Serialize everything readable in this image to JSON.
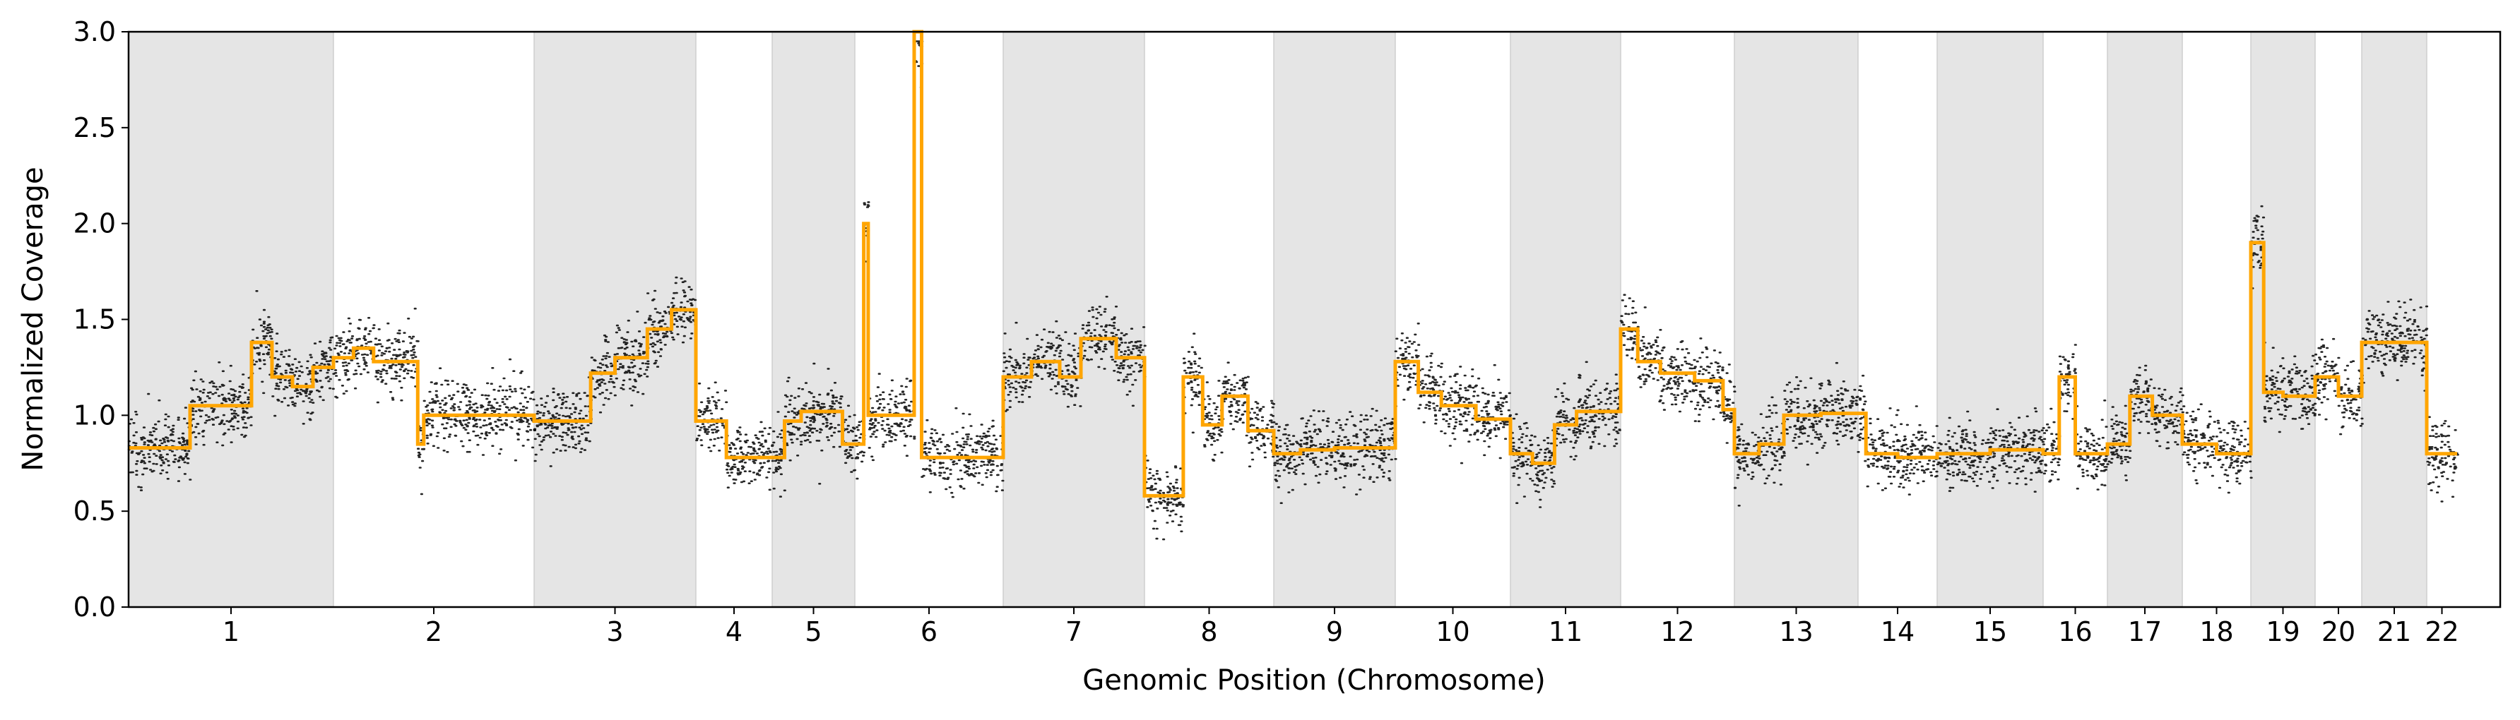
{
  "chart_data": {
    "type": "scatter",
    "xlabel": "Genomic Position (Chromosome)",
    "ylabel": "Normalized Coverage",
    "ylim": [
      0.0,
      3.0
    ],
    "yticks": [
      "0.0",
      "0.5",
      "1.0",
      "1.5",
      "2.0",
      "2.5",
      "3.0"
    ],
    "grid": false,
    "legend": "none",
    "colors": {
      "points": "#000000",
      "segments": "#FFA500",
      "shade": "#e5e5e5"
    },
    "chromosomes": [
      {
        "label": "1",
        "shaded": true,
        "segments": [
          [
            0.0,
            0.3,
            0.83
          ],
          [
            0.3,
            0.6,
            1.05
          ],
          [
            0.6,
            0.7,
            1.38
          ],
          [
            0.7,
            0.8,
            1.2
          ],
          [
            0.8,
            0.9,
            1.15
          ],
          [
            0.9,
            1.0,
            1.25
          ]
        ]
      },
      {
        "label": "2",
        "shaded": false,
        "segments": [
          [
            0.0,
            0.1,
            1.3
          ],
          [
            0.1,
            0.2,
            1.35
          ],
          [
            0.2,
            0.42,
            1.28
          ],
          [
            0.42,
            0.45,
            0.85
          ],
          [
            0.45,
            1.0,
            1.0
          ]
        ]
      },
      {
        "label": "3",
        "shaded": true,
        "segments": [
          [
            0.0,
            0.35,
            0.97
          ],
          [
            0.35,
            0.5,
            1.22
          ],
          [
            0.5,
            0.7,
            1.3
          ],
          [
            0.7,
            0.85,
            1.45
          ],
          [
            0.85,
            1.0,
            1.55
          ]
        ]
      },
      {
        "label": "4",
        "shaded": false,
        "segments": [
          [
            0.0,
            0.4,
            0.97
          ],
          [
            0.4,
            1.0,
            0.78
          ]
        ]
      },
      {
        "label": "5",
        "shaded": true,
        "segments": [
          [
            0.0,
            0.15,
            0.78
          ],
          [
            0.15,
            0.35,
            0.97
          ],
          [
            0.35,
            0.85,
            1.02
          ],
          [
            0.85,
            1.0,
            0.85
          ]
        ]
      },
      {
        "label": "6",
        "shaded": false,
        "segments": [
          [
            0.0,
            0.06,
            0.85
          ],
          [
            0.06,
            0.09,
            2.0
          ],
          [
            0.09,
            0.4,
            1.0
          ],
          [
            0.4,
            0.45,
            3.0
          ],
          [
            0.45,
            1.0,
            0.78
          ]
        ]
      },
      {
        "label": "7",
        "shaded": true,
        "segments": [
          [
            0.0,
            0.2,
            1.2
          ],
          [
            0.2,
            0.4,
            1.28
          ],
          [
            0.4,
            0.55,
            1.2
          ],
          [
            0.55,
            0.8,
            1.4
          ],
          [
            0.8,
            1.0,
            1.3
          ]
        ]
      },
      {
        "label": "8",
        "shaded": false,
        "segments": [
          [
            0.0,
            0.3,
            0.58
          ],
          [
            0.3,
            0.45,
            1.2
          ],
          [
            0.45,
            0.6,
            0.95
          ],
          [
            0.6,
            0.8,
            1.1
          ],
          [
            0.8,
            1.0,
            0.92
          ]
        ]
      },
      {
        "label": "9",
        "shaded": true,
        "segments": [
          [
            0.0,
            0.22,
            0.8
          ],
          [
            0.22,
            0.5,
            0.82
          ],
          [
            0.5,
            1.0,
            0.83
          ]
        ]
      },
      {
        "label": "10",
        "shaded": false,
        "segments": [
          [
            0.0,
            0.2,
            1.28
          ],
          [
            0.2,
            0.4,
            1.12
          ],
          [
            0.4,
            0.7,
            1.05
          ],
          [
            0.7,
            1.0,
            0.98
          ]
        ]
      },
      {
        "label": "11",
        "shaded": true,
        "segments": [
          [
            0.0,
            0.2,
            0.8
          ],
          [
            0.2,
            0.4,
            0.75
          ],
          [
            0.4,
            0.6,
            0.95
          ],
          [
            0.6,
            1.0,
            1.02
          ]
        ]
      },
      {
        "label": "12",
        "shaded": false,
        "segments": [
          [
            0.0,
            0.15,
            1.45
          ],
          [
            0.15,
            0.35,
            1.28
          ],
          [
            0.35,
            0.65,
            1.22
          ],
          [
            0.65,
            0.9,
            1.18
          ],
          [
            0.9,
            1.0,
            1.03
          ]
        ]
      },
      {
        "label": "13",
        "shaded": true,
        "segments": [
          [
            0.0,
            0.2,
            0.8
          ],
          [
            0.2,
            0.4,
            0.85
          ],
          [
            0.4,
            0.7,
            1.0
          ],
          [
            0.7,
            1.0,
            1.01
          ]
        ]
      },
      {
        "label": "14",
        "shaded": false,
        "segments": [
          [
            0.0,
            0.1,
            1.01
          ],
          [
            0.1,
            0.5,
            0.8
          ],
          [
            0.5,
            1.0,
            0.78
          ]
        ]
      },
      {
        "label": "15",
        "shaded": true,
        "segments": [
          [
            0.0,
            0.5,
            0.8
          ],
          [
            0.5,
            1.0,
            0.82
          ]
        ]
      },
      {
        "label": "16",
        "shaded": false,
        "segments": [
          [
            0.0,
            0.25,
            0.8
          ],
          [
            0.25,
            0.5,
            1.2
          ],
          [
            0.5,
            1.0,
            0.8
          ]
        ]
      },
      {
        "label": "17",
        "shaded": true,
        "segments": [
          [
            0.0,
            0.3,
            0.85
          ],
          [
            0.3,
            0.6,
            1.1
          ],
          [
            0.6,
            1.0,
            1.0
          ]
        ]
      },
      {
        "label": "18",
        "shaded": false,
        "segments": [
          [
            0.0,
            0.5,
            0.85
          ],
          [
            0.5,
            1.0,
            0.8
          ]
        ]
      },
      {
        "label": "19",
        "shaded": true,
        "segments": [
          [
            0.0,
            0.2,
            1.9
          ],
          [
            0.2,
            0.5,
            1.12
          ],
          [
            0.5,
            1.0,
            1.1
          ]
        ]
      },
      {
        "label": "20",
        "shaded": false,
        "segments": [
          [
            0.0,
            0.5,
            1.2
          ],
          [
            0.5,
            1.0,
            1.1
          ]
        ]
      },
      {
        "label": "21",
        "shaded": true,
        "segments": [
          [
            0.0,
            1.0,
            1.38
          ]
        ]
      },
      {
        "label": "22",
        "shaded": false,
        "segments": [
          [
            0.0,
            1.0,
            0.8
          ]
        ]
      }
    ]
  }
}
